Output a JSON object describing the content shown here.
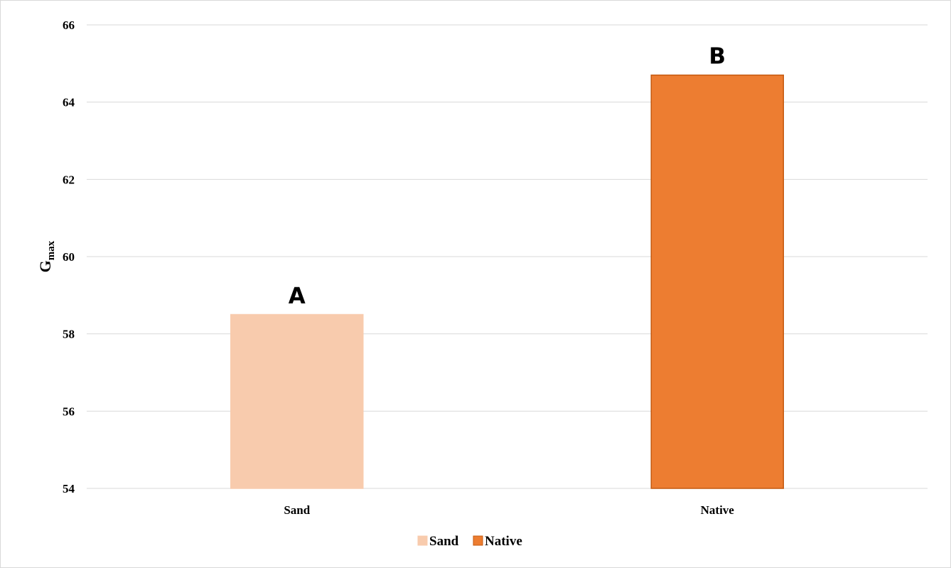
{
  "chart_data": {
    "type": "bar",
    "categories": [
      "Sand",
      "Native"
    ],
    "values": [
      58.5,
      64.7
    ],
    "bar_colors": [
      "#F8CBAD",
      "#ED7D31"
    ],
    "bar_border_colors": [
      "#F8CBAD",
      "#C55A11"
    ],
    "annotations": [
      "A",
      "B"
    ],
    "ylabel": {
      "main": "G",
      "subscript": "max"
    },
    "xlabel": "",
    "title": "",
    "ylim": [
      54,
      66
    ],
    "yticks": [
      54,
      56,
      58,
      60,
      62,
      64,
      66
    ],
    "grid": true,
    "grid_color": "#d9d9d9",
    "legend": {
      "placement": "bottom",
      "entries": [
        {
          "label": "Sand",
          "color": "#F8CBAD"
        },
        {
          "label": "Native",
          "color": "#ED7D31"
        }
      ]
    }
  }
}
